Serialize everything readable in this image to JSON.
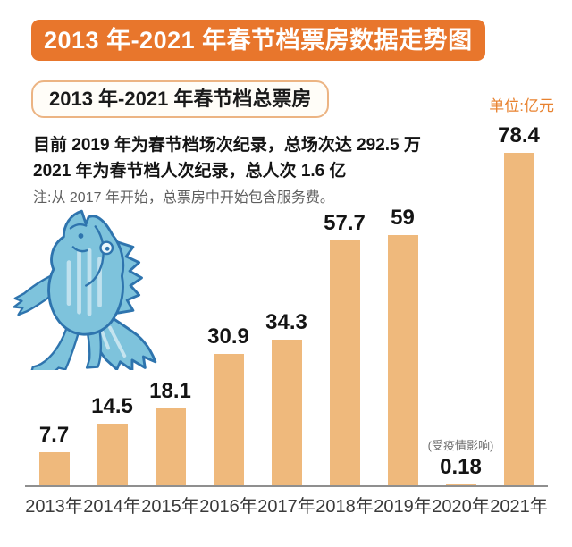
{
  "title": "2013 年-2021 年春节档票房数据走势图",
  "subtitle": "2013 年-2021 年春节档总票房",
  "unit_label": "单位:亿元",
  "info": {
    "line1": "目前 2019 年为春节档场次纪录，总场次达 292.5 万",
    "line2": "2021 年为春节档人次纪录，总人次 1.6 亿",
    "note": "注:从 2017 年开始，总票房中开始包含服务费。"
  },
  "mascot": "blue-fish-man-cartoon",
  "colors": {
    "banner_bg": "#E8762C",
    "banner_text": "#FFFFFF",
    "subtitle_border": "#ECB483",
    "bar_fill": "#EFB97C",
    "accent_orange": "#E8822F",
    "text_dark": "#141414",
    "note_gray": "#5E5E5E",
    "axis_gray": "#8F8F8F",
    "fish_blue": "#7EC3DC",
    "fish_outline": "#2E74AE"
  },
  "chart_data": {
    "type": "bar",
    "title": "2013 年-2021 年春节档总票房",
    "unit": "亿元",
    "categories": [
      "2013年",
      "2014年",
      "2015年",
      "2016年",
      "2017年",
      "2018年",
      "2019年",
      "2020年",
      "2021年"
    ],
    "values": [
      7.7,
      14.5,
      18.1,
      30.9,
      34.3,
      57.7,
      59,
      0.18,
      78.4
    ],
    "value_labels": [
      "7.7",
      "14.5",
      "18.1",
      "30.9",
      "34.3",
      "57.7",
      "59",
      "0.18",
      "78.4"
    ],
    "annotations": [
      {
        "category": "2020年",
        "text": "(受疫情影响)"
      }
    ],
    "xlabel": "",
    "ylabel": "亿元",
    "ylim": [
      0,
      80
    ],
    "grid": false,
    "legend": false
  }
}
